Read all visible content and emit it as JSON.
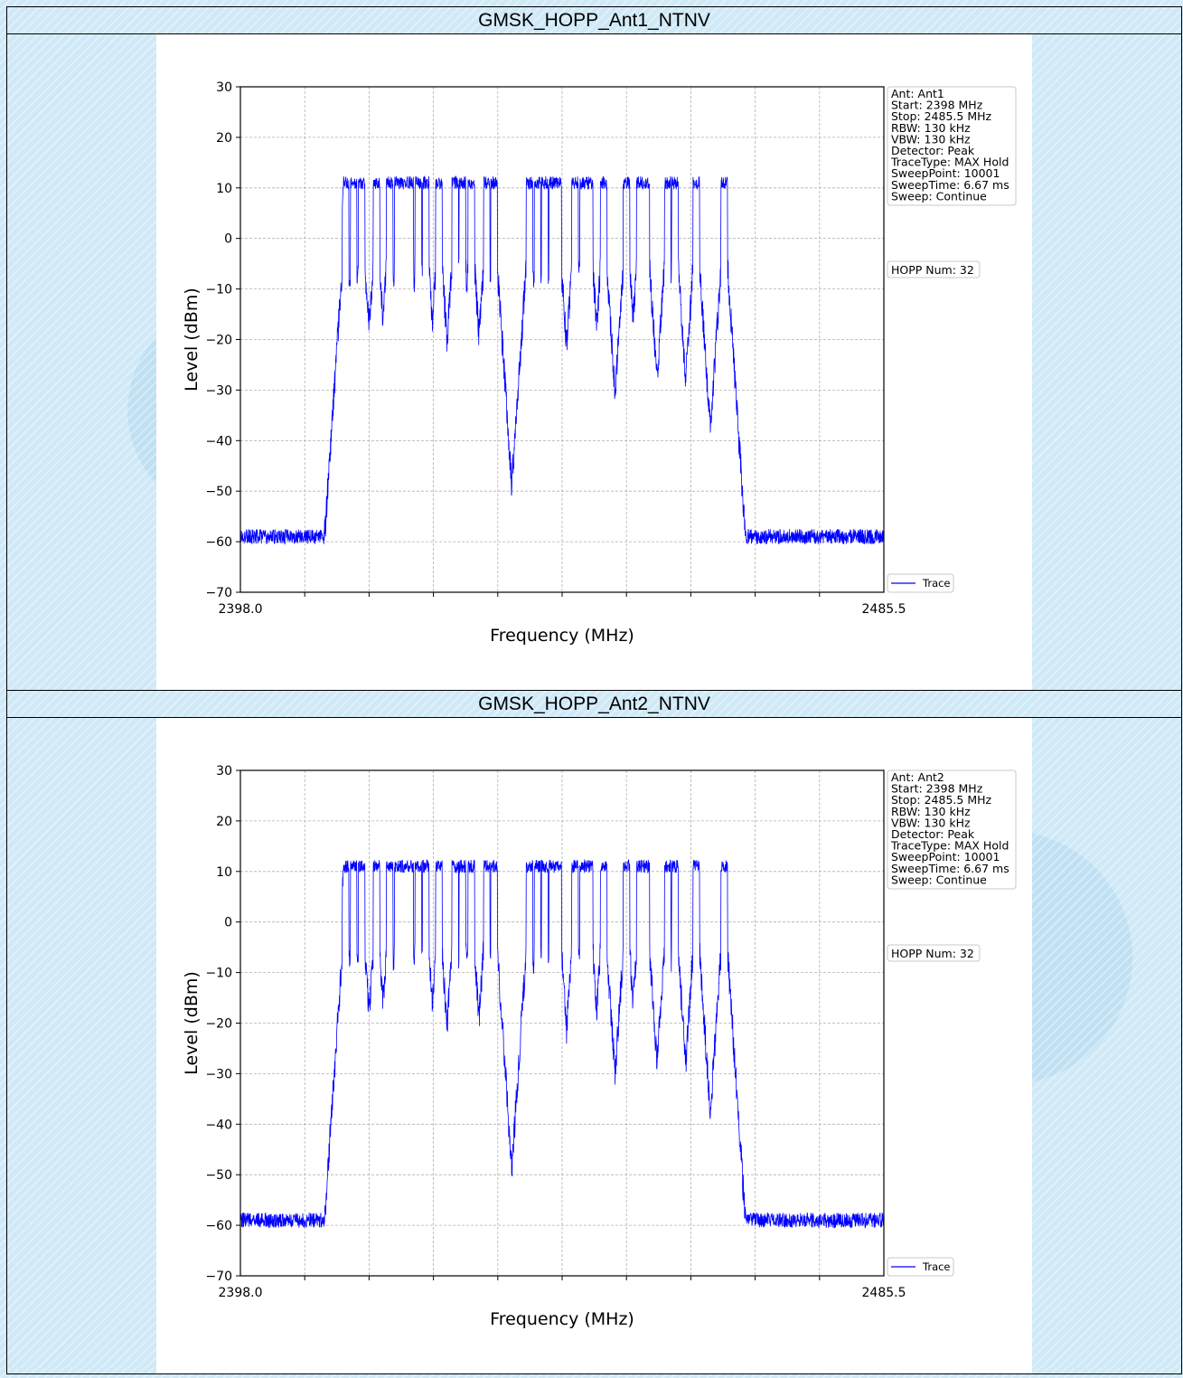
{
  "panels": [
    {
      "title": "GMSK_HOPP_Ant1_NTNV",
      "info_lines": [
        "Ant: Ant1",
        "Start: 2398 MHz",
        "Stop: 2485.5 MHz",
        "RBW: 130 kHz",
        "VBW: 130 kHz",
        "Detector: Peak",
        "TraceType: MAX Hold",
        "SweepPoint: 10001",
        "SweepTime: 6.67 ms",
        "Sweep: Continue"
      ],
      "hopp_label": "HOPP Num: 32"
    },
    {
      "title": "GMSK_HOPP_Ant2_NTNV",
      "info_lines": [
        "Ant: Ant2",
        "Start: 2398 MHz",
        "Stop: 2485.5 MHz",
        "RBW: 130 kHz",
        "VBW: 130 kHz",
        "Detector: Peak",
        "TraceType: MAX Hold",
        "SweepPoint: 10001",
        "SweepTime: 6.67 ms",
        "Sweep: Continue"
      ],
      "hopp_label": "HOPP Num: 32"
    }
  ],
  "chart_data": [
    {
      "type": "line",
      "xlabel": "Frequency (MHz)",
      "ylabel": "Level (dBm)",
      "xlim": [
        2398.0,
        2485.5
      ],
      "ylim": [
        -70,
        30
      ],
      "x_tick_labels": [
        "2398.0",
        "2485.5"
      ],
      "y_ticks": [
        30,
        20,
        10,
        0,
        -10,
        -20,
        -30,
        -40,
        -50,
        -60,
        -70
      ],
      "grid": true,
      "legend": "lower-right outside",
      "series": [
        {
          "name": "Trace",
          "color": "#0000ff",
          "channel_centers_mhz": [
            2412.3,
            2413.4,
            2414.5,
            2416.5,
            2418.3,
            2419.4,
            2420.2,
            2421.1,
            2422.2,
            2423.2,
            2425.0,
            2427.2,
            2428.2,
            2429.4,
            2431.5,
            2432.5,
            2437.3,
            2438.4,
            2439.4,
            2440.4,
            2441.2,
            2443.5,
            2444.6,
            2445.5,
            2447.4,
            2450.5,
            2452.3,
            2453.2,
            2456.1,
            2457.1,
            2460.0,
            2463.8
          ],
          "in_band_level_dbm": 11,
          "noise_floor_dbm": -58
        }
      ]
    },
    {
      "type": "line",
      "xlabel": "Frequency (MHz)",
      "ylabel": "Level (dBm)",
      "xlim": [
        2398.0,
        2485.5
      ],
      "ylim": [
        -70,
        30
      ],
      "x_tick_labels": [
        "2398.0",
        "2485.5"
      ],
      "y_ticks": [
        30,
        20,
        10,
        0,
        -10,
        -20,
        -30,
        -40,
        -50,
        -60,
        -70
      ],
      "grid": true,
      "legend": "lower-right outside",
      "series": [
        {
          "name": "Trace",
          "color": "#0000ff",
          "channel_centers_mhz": [
            2412.3,
            2413.4,
            2414.5,
            2416.5,
            2418.3,
            2419.4,
            2420.2,
            2421.1,
            2422.2,
            2423.2,
            2425.0,
            2427.2,
            2428.2,
            2429.4,
            2431.5,
            2432.5,
            2437.3,
            2438.4,
            2439.4,
            2440.4,
            2441.2,
            2443.5,
            2444.6,
            2445.5,
            2447.4,
            2450.5,
            2452.3,
            2453.2,
            2456.1,
            2457.1,
            2460.0,
            2463.8
          ],
          "in_band_level_dbm": 11,
          "noise_floor_dbm": -58
        }
      ]
    }
  ]
}
